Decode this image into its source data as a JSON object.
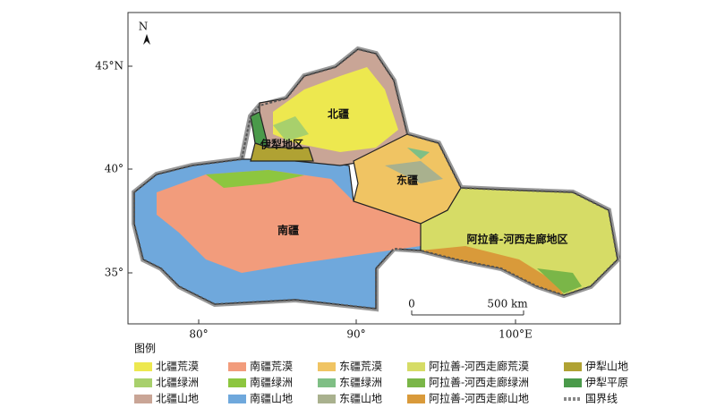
{
  "map": {
    "north_label": "N",
    "region_labels": [
      "北疆",
      "伊犁地区",
      "东疆",
      "南疆",
      "阿拉善-河西走廊地区"
    ],
    "lat_labels": [
      "45°N",
      "40°",
      "35°"
    ],
    "lon_labels": [
      "80°",
      "90°",
      "100°E"
    ],
    "scale_bar": [
      "0",
      "500 km"
    ]
  },
  "legend": {
    "title": "图例",
    "items": [
      {
        "label": "北疆荒漠",
        "color": "#ede84f"
      },
      {
        "label": "北疆绿洲",
        "color": "#a8d06c"
      },
      {
        "label": "北疆山地",
        "color": "#c9a596"
      },
      {
        "label": "南疆荒漠",
        "color": "#f29c7c"
      },
      {
        "label": "南疆绿洲",
        "color": "#8dc63f"
      },
      {
        "label": "南疆山地",
        "color": "#6fa8dc"
      },
      {
        "label": "东疆荒漠",
        "color": "#f0c463"
      },
      {
        "label": "东疆绿洲",
        "color": "#7fbf85"
      },
      {
        "label": "东疆山地",
        "color": "#a9b18e"
      },
      {
        "label": "阿拉善-河西走廊荒漠",
        "color": "#d6dc66"
      },
      {
        "label": "阿拉善-河西走廊绿洲",
        "color": "#7ab648"
      },
      {
        "label": "阿拉善-河西走廊山地",
        "color": "#d99a3a"
      },
      {
        "label": "伊犁山地",
        "color": "#b0a233"
      },
      {
        "label": "伊犁平原",
        "color": "#4a9a4a"
      },
      {
        "label": "国界线",
        "color": "#888888"
      }
    ]
  }
}
